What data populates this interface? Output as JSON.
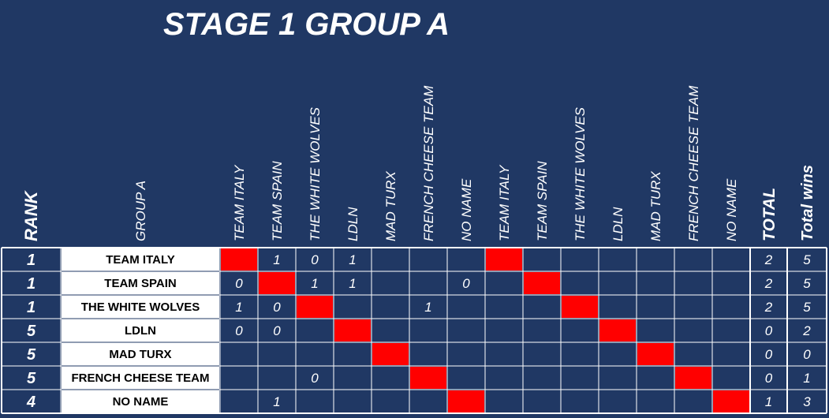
{
  "title": "STAGE 1 GROUP A",
  "header": {
    "rank": "RANK",
    "group": "GROUP A",
    "teams": [
      "TEAM ITALY",
      "TEAM SPAIN",
      "THE WHITE WOLVES",
      "LDLN",
      "MAD TURX",
      "FRENCH CHEESE TEAM",
      "NO NAME",
      "TEAM ITALY",
      "TEAM SPAIN",
      "THE WHITE WOLVES",
      "LDLN",
      "MAD TURX",
      "FRENCH CHEESE TEAM",
      "NO NAME"
    ],
    "total": "TOTAL",
    "wins": "Total wins"
  },
  "rows": [
    {
      "rank": 1,
      "team": "TEAM ITALY",
      "results": [
        null,
        1,
        0,
        1,
        null,
        null,
        null,
        null,
        null,
        null,
        null,
        null,
        null,
        null
      ],
      "total": 2,
      "wins": 5
    },
    {
      "rank": 1,
      "team": "TEAM SPAIN",
      "results": [
        0,
        null,
        1,
        1,
        null,
        null,
        0,
        null,
        null,
        null,
        null,
        null,
        null,
        null
      ],
      "total": 2,
      "wins": 5
    },
    {
      "rank": 1,
      "team": "THE WHITE WOLVES",
      "results": [
        1,
        0,
        null,
        null,
        null,
        1,
        null,
        null,
        null,
        null,
        null,
        null,
        null,
        null
      ],
      "total": 2,
      "wins": 5
    },
    {
      "rank": 5,
      "team": "LDLN",
      "results": [
        0,
        0,
        null,
        null,
        null,
        null,
        null,
        null,
        null,
        null,
        null,
        null,
        null,
        null
      ],
      "total": 0,
      "wins": 2
    },
    {
      "rank": 5,
      "team": "MAD TURX",
      "results": [
        null,
        null,
        null,
        null,
        null,
        null,
        null,
        null,
        null,
        null,
        null,
        null,
        null,
        null
      ],
      "total": 0,
      "wins": 0
    },
    {
      "rank": 5,
      "team": "FRENCH CHEESE TEAM",
      "results": [
        null,
        null,
        0,
        null,
        null,
        null,
        null,
        null,
        null,
        null,
        null,
        null,
        null,
        null
      ],
      "total": 0,
      "wins": 1
    },
    {
      "rank": 4,
      "team": "NO NAME",
      "results": [
        null,
        1,
        null,
        null,
        null,
        null,
        null,
        null,
        null,
        null,
        null,
        null,
        null,
        null
      ],
      "total": 1,
      "wins": 3
    }
  ]
}
